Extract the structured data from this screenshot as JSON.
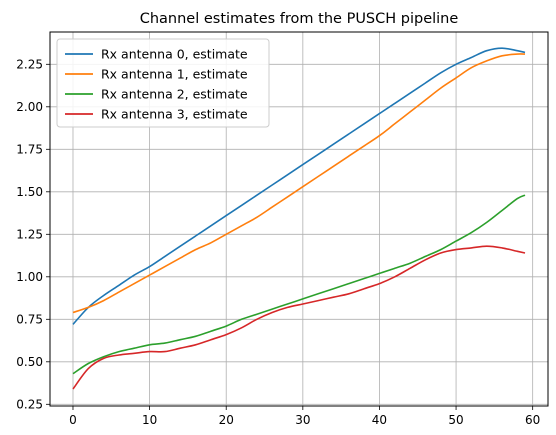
{
  "chart_data": {
    "type": "line",
    "title": "Channel estimates from the PUSCH pipeline",
    "xlabel": "",
    "ylabel": "",
    "xlim": [
      -3,
      62
    ],
    "ylim": [
      0.24,
      2.44
    ],
    "xticks": [
      0,
      10,
      20,
      30,
      40,
      50,
      60
    ],
    "yticks": [
      0.25,
      0.5,
      0.75,
      1.0,
      1.25,
      1.5,
      1.75,
      2.0,
      2.25
    ],
    "ytick_labels": [
      "0.25",
      "0.50",
      "0.75",
      "1.00",
      "1.25",
      "1.50",
      "1.75",
      "2.00",
      "2.25"
    ],
    "grid": true,
    "legend_position": "top-left",
    "x": [
      0,
      2,
      4,
      6,
      8,
      10,
      12,
      14,
      16,
      18,
      20,
      22,
      24,
      26,
      28,
      30,
      32,
      34,
      36,
      38,
      40,
      42,
      44,
      46,
      48,
      50,
      52,
      54,
      56,
      58,
      59
    ],
    "series": [
      {
        "name": "Rx antenna 0, estimate",
        "color": "#1f77b4",
        "values": [
          0.72,
          0.82,
          0.89,
          0.95,
          1.01,
          1.06,
          1.12,
          1.18,
          1.24,
          1.3,
          1.36,
          1.42,
          1.48,
          1.54,
          1.6,
          1.66,
          1.72,
          1.78,
          1.84,
          1.9,
          1.96,
          2.02,
          2.08,
          2.14,
          2.2,
          2.25,
          2.29,
          2.33,
          2.345,
          2.33,
          2.32
        ]
      },
      {
        "name": "Rx antenna 1, estimate",
        "color": "#ff7f0e",
        "values": [
          0.79,
          0.82,
          0.86,
          0.91,
          0.96,
          1.01,
          1.06,
          1.11,
          1.16,
          1.2,
          1.25,
          1.3,
          1.35,
          1.41,
          1.47,
          1.53,
          1.59,
          1.65,
          1.71,
          1.77,
          1.83,
          1.9,
          1.97,
          2.04,
          2.11,
          2.17,
          2.23,
          2.27,
          2.3,
          2.31,
          2.31
        ]
      },
      {
        "name": "Rx antenna 2, estimate",
        "color": "#2ca02c",
        "values": [
          0.43,
          0.49,
          0.53,
          0.56,
          0.58,
          0.6,
          0.61,
          0.63,
          0.65,
          0.68,
          0.71,
          0.75,
          0.78,
          0.81,
          0.84,
          0.87,
          0.9,
          0.93,
          0.96,
          0.99,
          1.02,
          1.05,
          1.08,
          1.12,
          1.16,
          1.21,
          1.26,
          1.32,
          1.39,
          1.46,
          1.48
        ]
      },
      {
        "name": "Rx antenna 3, estimate",
        "color": "#d62728",
        "values": [
          0.34,
          0.46,
          0.52,
          0.54,
          0.55,
          0.56,
          0.56,
          0.58,
          0.6,
          0.63,
          0.66,
          0.7,
          0.75,
          0.79,
          0.82,
          0.84,
          0.86,
          0.88,
          0.9,
          0.93,
          0.96,
          1.0,
          1.05,
          1.1,
          1.14,
          1.16,
          1.17,
          1.18,
          1.17,
          1.15,
          1.14
        ]
      }
    ]
  }
}
